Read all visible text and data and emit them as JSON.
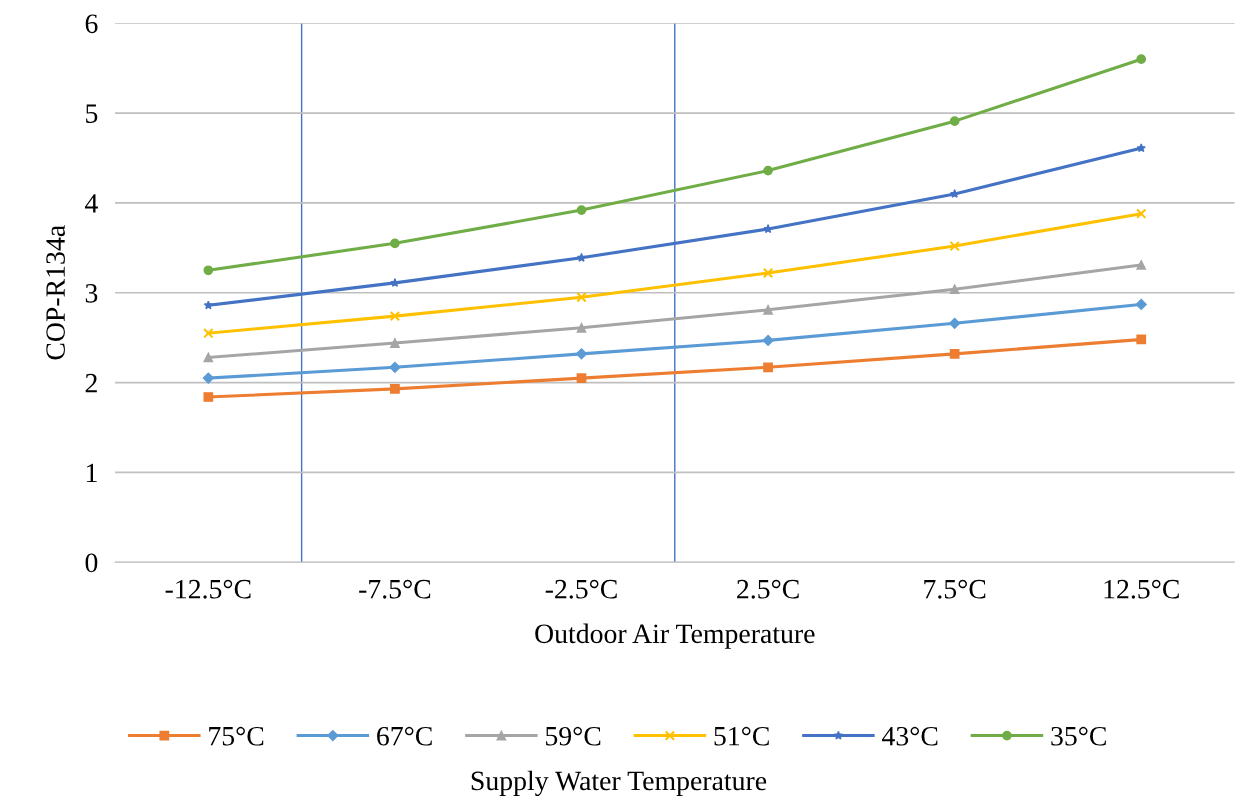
{
  "chart_data": {
    "type": "line",
    "xlabel": "Outdoor Air Temperature",
    "ylabel": "COP-R134a",
    "legend_title": "Supply Water Temperature",
    "x": [
      -12.5,
      -7.5,
      -2.5,
      2.5,
      7.5,
      12.5
    ],
    "xlim": [
      -15,
      15
    ],
    "xticks": [
      {
        "value": -12.5,
        "label": "-12.5°C"
      },
      {
        "value": -7.5,
        "label": "-7.5°C"
      },
      {
        "value": -2.5,
        "label": "-2.5°C"
      },
      {
        "value": 2.5,
        "label": "2.5°C"
      },
      {
        "value": 7.5,
        "label": "7.5°C"
      },
      {
        "value": 12.5,
        "label": "12.5°C"
      }
    ],
    "ylim": [
      0,
      6
    ],
    "yticks": [
      0,
      1,
      2,
      3,
      4,
      5,
      6
    ],
    "grid": "y",
    "legend": "bottom",
    "line_style": "solid",
    "ref_lines": [
      {
        "axis": "x",
        "value": -10,
        "color": "#4472c4"
      },
      {
        "axis": "x",
        "value": 0,
        "color": "#4472c4"
      }
    ],
    "series": [
      {
        "name": "75°C",
        "color": "#ed7d31",
        "marker": "square",
        "values": [
          1.84,
          1.93,
          2.05,
          2.17,
          2.32,
          2.48
        ]
      },
      {
        "name": "67°C",
        "color": "#5b9bd5",
        "marker": "diamond",
        "values": [
          2.05,
          2.17,
          2.32,
          2.47,
          2.66,
          2.87
        ]
      },
      {
        "name": "59°C",
        "color": "#a5a5a5",
        "marker": "triangle",
        "values": [
          2.28,
          2.44,
          2.61,
          2.81,
          3.04,
          3.31
        ]
      },
      {
        "name": "51°C",
        "color": "#ffc000",
        "marker": "cross",
        "values": [
          2.55,
          2.74,
          2.95,
          3.22,
          3.52,
          3.88
        ]
      },
      {
        "name": "43°C",
        "color": "#4472c4",
        "marker": "star",
        "values": [
          2.86,
          3.11,
          3.39,
          3.71,
          4.1,
          4.61
        ]
      },
      {
        "name": "35°C",
        "color": "#70ad47",
        "marker": "circle",
        "values": [
          3.25,
          3.55,
          3.92,
          4.36,
          4.91,
          5.6
        ]
      }
    ]
  }
}
